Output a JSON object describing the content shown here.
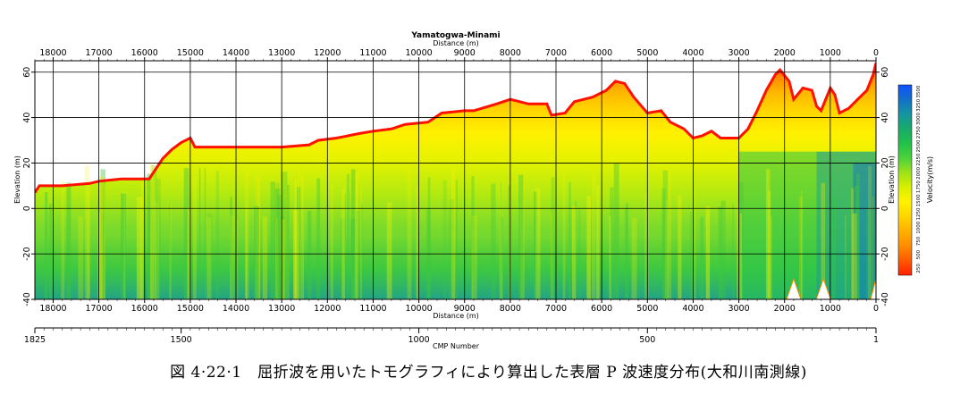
{
  "caption": "図 4·22·1　屈折波を用いたトモグラフィにより算出した表層 P 波速度分布(大和川南測線)",
  "chart_data": {
    "type": "heatmap",
    "title": "Yamatogwa-Minami",
    "top_xlabel": "Distance (m)",
    "bottom_xlabel": "Distance (m)",
    "cmp_xlabel": "CMP Number",
    "ylabel_left": "Elevation (m)",
    "ylabel_right": "Elevation (m)",
    "xlim": [
      18400,
      0
    ],
    "ylim": [
      -40,
      65
    ],
    "x_ticks": [
      18000,
      17000,
      16000,
      15000,
      14000,
      13000,
      12000,
      11000,
      10000,
      9000,
      8000,
      7000,
      6000,
      5000,
      4000,
      3000,
      2000,
      1000,
      0
    ],
    "y_ticks": [
      60,
      40,
      20,
      0,
      -20,
      -40
    ],
    "cmp_ticks": [
      {
        "cmp": 1825,
        "distance": 18400
      },
      {
        "cmp": 1500,
        "distance": 15200
      },
      {
        "cmp": 1000,
        "distance": 10000
      },
      {
        "cmp": 500,
        "distance": 5000
      },
      {
        "cmp": 1,
        "distance": 0
      }
    ],
    "grid": true,
    "colorbar": {
      "label": "Velocity(m/s)",
      "ticks": [
        250,
        500,
        750,
        1000,
        1250,
        1500,
        1750,
        2000,
        2250,
        2500,
        2750,
        3000,
        3250,
        3500
      ],
      "colors": [
        "#ff2000",
        "#ff5a00",
        "#ff8c00",
        "#ffb000",
        "#ffd400",
        "#fff200",
        "#d8f000",
        "#9ee21a",
        "#4cd23a",
        "#22c24a",
        "#18ab6a",
        "#1496a0",
        "#1270c8",
        "#1050ff"
      ]
    },
    "surface_elevation": [
      [
        18400,
        7
      ],
      [
        18300,
        10
      ],
      [
        17800,
        10
      ],
      [
        17200,
        11
      ],
      [
        17000,
        12
      ],
      [
        16500,
        13
      ],
      [
        15900,
        13
      ],
      [
        15800,
        16
      ],
      [
        15600,
        22
      ],
      [
        15400,
        26
      ],
      [
        15200,
        29
      ],
      [
        15000,
        31
      ],
      [
        14900,
        27
      ],
      [
        14000,
        27
      ],
      [
        13000,
        27
      ],
      [
        12400,
        28
      ],
      [
        12200,
        30
      ],
      [
        11800,
        31
      ],
      [
        11300,
        33
      ],
      [
        11000,
        34
      ],
      [
        10600,
        35
      ],
      [
        10300,
        37
      ],
      [
        9800,
        38
      ],
      [
        9500,
        42
      ],
      [
        9000,
        43
      ],
      [
        8800,
        43
      ],
      [
        8300,
        46
      ],
      [
        8000,
        48
      ],
      [
        7600,
        46
      ],
      [
        7200,
        46
      ],
      [
        7100,
        41
      ],
      [
        6800,
        42
      ],
      [
        6600,
        47
      ],
      [
        6200,
        49
      ],
      [
        5900,
        52
      ],
      [
        5700,
        56
      ],
      [
        5500,
        55
      ],
      [
        5300,
        49
      ],
      [
        5000,
        42
      ],
      [
        4700,
        43
      ],
      [
        4500,
        38
      ],
      [
        4200,
        35
      ],
      [
        4000,
        31
      ],
      [
        3800,
        32
      ],
      [
        3600,
        34
      ],
      [
        3400,
        31
      ],
      [
        3200,
        31
      ],
      [
        3000,
        31
      ],
      [
        2800,
        35
      ],
      [
        2600,
        43
      ],
      [
        2400,
        52
      ],
      [
        2200,
        59
      ],
      [
        2100,
        61
      ],
      [
        1900,
        56
      ],
      [
        1800,
        48
      ],
      [
        1600,
        53
      ],
      [
        1400,
        52
      ],
      [
        1300,
        45
      ],
      [
        1200,
        43
      ],
      [
        1100,
        48
      ],
      [
        1000,
        53
      ],
      [
        900,
        50
      ],
      [
        800,
        42
      ],
      [
        600,
        44
      ],
      [
        400,
        48
      ],
      [
        200,
        52
      ],
      [
        60,
        59
      ],
      [
        0,
        64
      ]
    ],
    "ray_gaps_x": [
      1800,
      1150,
      0
    ]
  }
}
